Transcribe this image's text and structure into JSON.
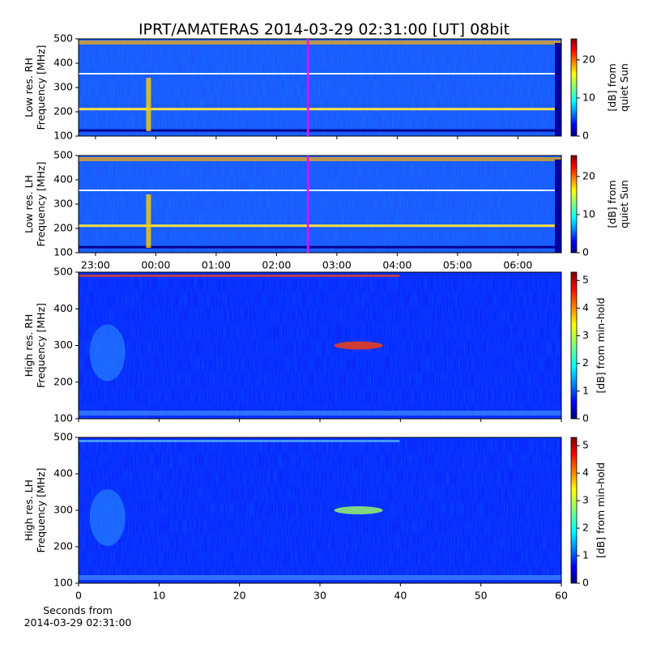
{
  "title": "IPRT/AMATERAS 2014-03-29 02:31:00 [UT]   08bit",
  "chart_data": [
    {
      "type": "heatmap",
      "ylabel": [
        "Low res. RH",
        "Frequency [MHz]"
      ],
      "ylim": [
        100,
        500
      ],
      "yticks": [
        100,
        200,
        300,
        400,
        500
      ],
      "xlim": [
        22.72,
        30.72
      ],
      "vline": 26.52,
      "vline_color": "#ff00ff",
      "colorbar_label": [
        "[dB] from",
        "quiet Sun"
      ],
      "clim": [
        0,
        25.5
      ],
      "cticks": [
        0,
        10,
        20
      ]
    },
    {
      "type": "heatmap",
      "ylabel": [
        "Low res. LH",
        "Frequency [MHz]"
      ],
      "ylim": [
        100,
        500
      ],
      "yticks": [
        100,
        200,
        300,
        400,
        500
      ],
      "xlim": [
        22.72,
        30.72
      ],
      "vline": 26.52,
      "vline_color": "#ff00ff",
      "xticks": [
        {
          "value": 23,
          "label": "23:00"
        },
        {
          "value": 24,
          "label": "00:00"
        },
        {
          "value": 25,
          "label": "01:00"
        },
        {
          "value": 26,
          "label": "02:00"
        },
        {
          "value": 27,
          "label": "03:00"
        },
        {
          "value": 28,
          "label": "04:00"
        },
        {
          "value": 29,
          "label": "05:00"
        },
        {
          "value": 30,
          "label": "06:00"
        }
      ],
      "colorbar_label": [
        "[dB] from",
        "quiet Sun"
      ],
      "clim": [
        0,
        25.5
      ],
      "cticks": [
        0,
        10,
        20
      ]
    },
    {
      "type": "heatmap",
      "ylabel": [
        "High res. RH",
        "Frequency [MHz]"
      ],
      "ylim": [
        100,
        500
      ],
      "yticks": [
        100,
        200,
        300,
        400,
        500
      ],
      "xlim": [
        0,
        60
      ],
      "colorbar_label": [
        "[dB] from min-hold"
      ],
      "clim": [
        0,
        5.3
      ],
      "cticks": [
        0,
        1,
        2,
        3,
        4,
        5
      ]
    },
    {
      "type": "heatmap",
      "ylabel": [
        "High res. LH",
        "Frequency [MHz]"
      ],
      "ylim": [
        100,
        500
      ],
      "yticks": [
        100,
        200,
        300,
        400,
        500
      ],
      "xlim": [
        0,
        60
      ],
      "xticks": [
        0,
        10,
        20,
        30,
        40,
        50,
        60
      ],
      "xlabel": [
        "Seconds from",
        "2014-03-29 02:31:00"
      ],
      "colorbar_label": [
        "[dB] from min-hold"
      ],
      "clim": [
        0,
        5.3
      ],
      "cticks": [
        0,
        1,
        2,
        3,
        4,
        5
      ]
    }
  ]
}
